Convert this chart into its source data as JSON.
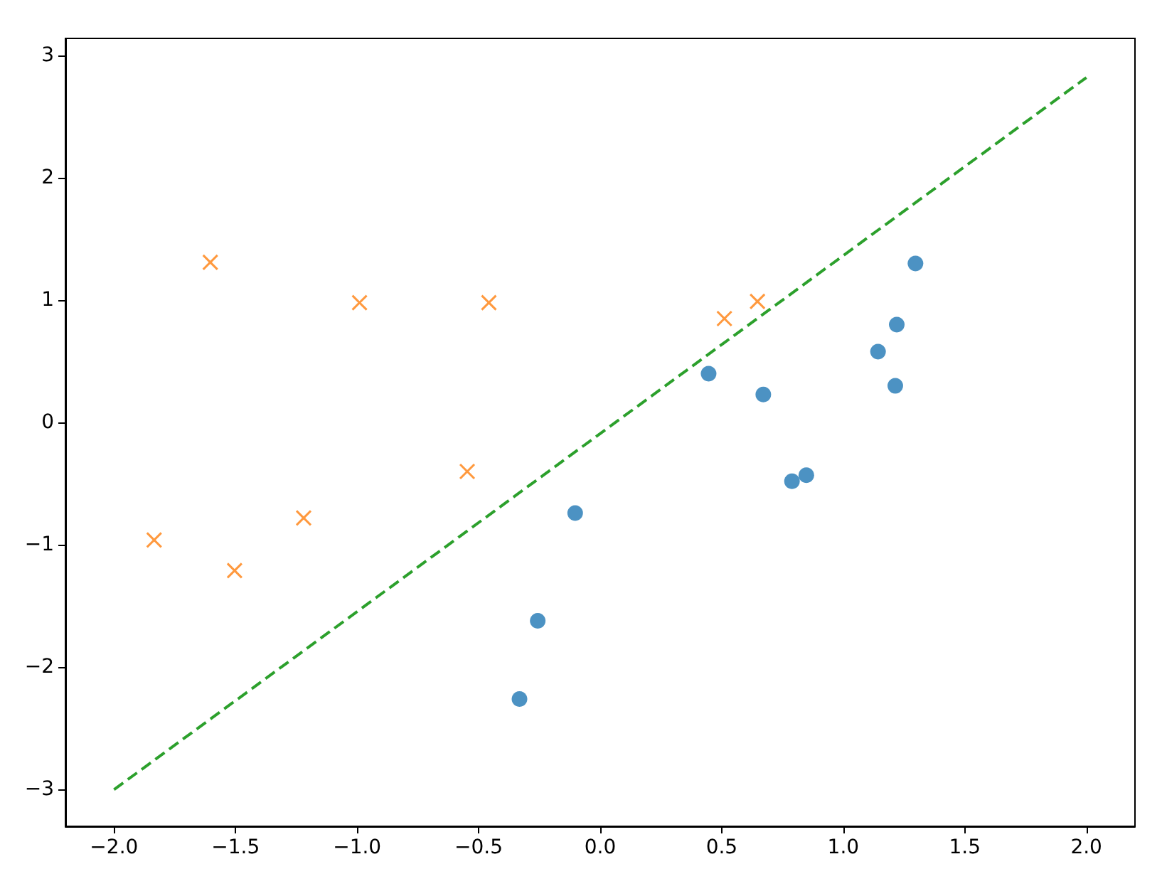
{
  "chart_data": {
    "type": "scatter",
    "series": [
      {
        "type": "scatter",
        "color": "#1f77b4",
        "marker": "circle",
        "x": [
          -0.332,
          -0.257,
          -0.103,
          0.446,
          0.671,
          0.789,
          0.848,
          1.143,
          1.22,
          1.214,
          1.297
        ],
        "values": [
          -2.26,
          -1.62,
          -0.74,
          0.4,
          0.23,
          -0.48,
          -0.43,
          0.58,
          0.8,
          0.3,
          1.3
        ]
      },
      {
        "type": "scatter",
        "color": "#ff7f0e",
        "marker": "cross",
        "x": [
          -1.835,
          -1.604,
          -1.504,
          -1.22,
          -0.99,
          -0.547,
          -0.458,
          0.511,
          0.647
        ],
        "values": [
          -0.96,
          1.31,
          -1.21,
          -0.78,
          0.98,
          -0.4,
          0.98,
          0.85,
          0.99
        ]
      },
      {
        "type": "line",
        "color": "#2ca02c",
        "marker": "none",
        "line_style": "dashed",
        "x": [
          -2,
          2
        ],
        "values": [
          -3,
          2.82
        ]
      }
    ],
    "xlim": [
      -2.2,
      2.2
    ],
    "ylim": [
      -3.3,
      3.14
    ],
    "xticks": [
      {
        "value": -2,
        "label": "−2.0"
      },
      {
        "value": -1.5,
        "label": "−1.5"
      },
      {
        "value": -1,
        "label": "−1.0"
      },
      {
        "value": -0.5,
        "label": "−0.5"
      },
      {
        "value": 0,
        "label": "0.0"
      },
      {
        "value": 0.5,
        "label": "0.5"
      },
      {
        "value": 1,
        "label": "1.0"
      },
      {
        "value": 1.5,
        "label": "1.5"
      },
      {
        "value": 2,
        "label": "2.0"
      }
    ],
    "yticks": [
      {
        "value": -3,
        "label": "−3"
      },
      {
        "value": -2,
        "label": "−2"
      },
      {
        "value": -1,
        "label": "−1"
      },
      0,
      1,
      2,
      3
    ],
    "grid": false
  }
}
